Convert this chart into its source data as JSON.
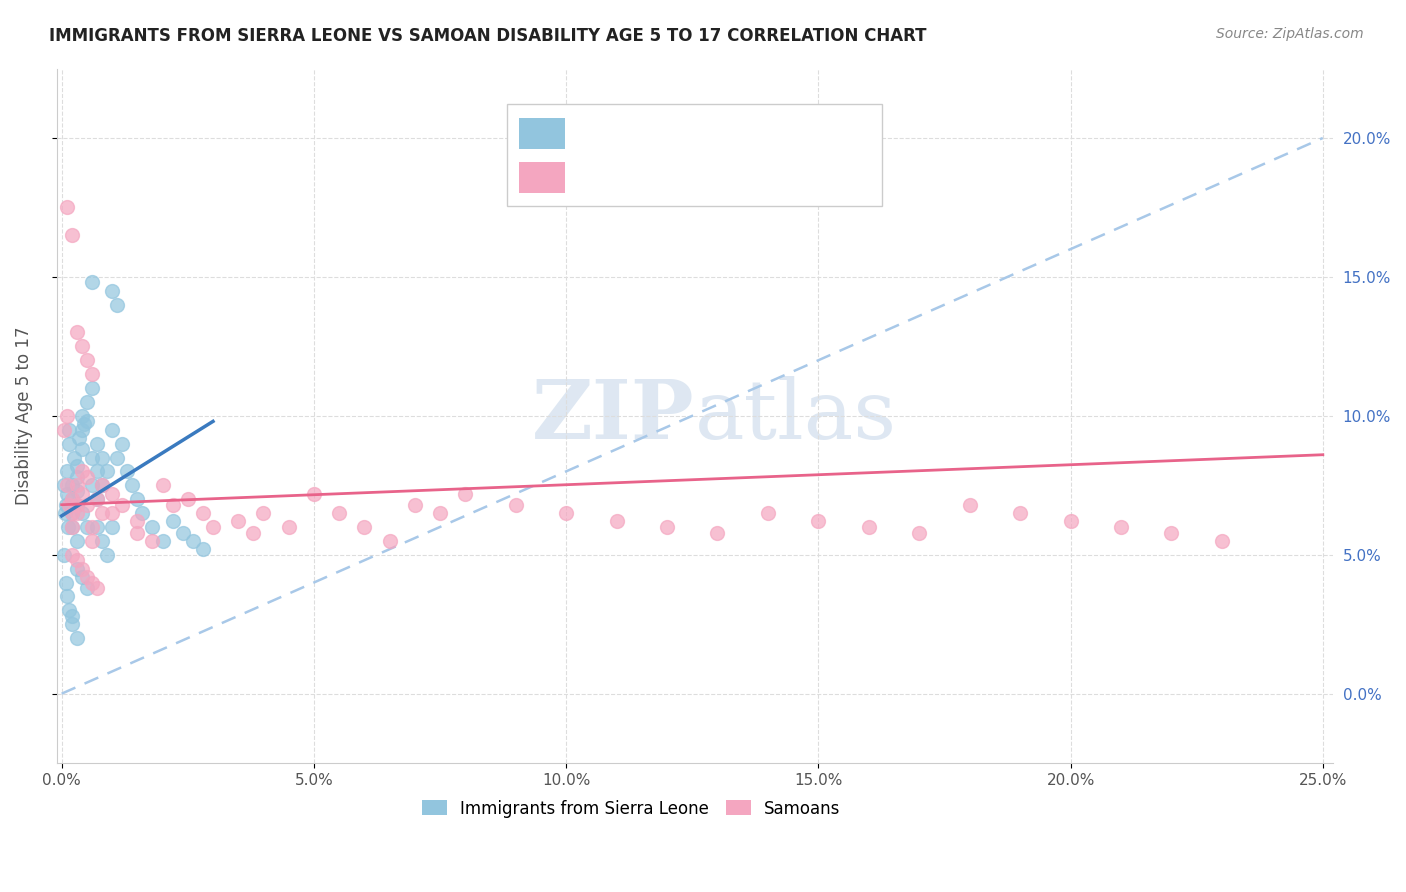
{
  "title": "IMMIGRANTS FROM SIERRA LEONE VS SAMOAN DISABILITY AGE 5 TO 17 CORRELATION CHART",
  "source": "Source: ZipAtlas.com",
  "ylabel": "Disability Age 5 to 17",
  "xlim": [
    -0.001,
    0.252
  ],
  "ylim": [
    -0.025,
    0.225
  ],
  "right_yticks": [
    0.0,
    0.05,
    0.1,
    0.15,
    0.2
  ],
  "right_yticklabels": [
    "0.0%",
    "5.0%",
    "10.0%",
    "15.0%",
    "20.0%"
  ],
  "xticks": [
    0.0,
    0.05,
    0.1,
    0.15,
    0.2,
    0.25
  ],
  "xticklabels": [
    "0.0%",
    "5.0%",
    "10.0%",
    "15.0%",
    "20.0%",
    "25.0%"
  ],
  "color_blue": "#92c5de",
  "color_pink": "#f4a6c0",
  "color_blue_line": "#3a7abf",
  "color_pink_line": "#e8638a",
  "color_dashed": "#a8c8e8",
  "watermark_color": "#c8d8ea",
  "legend1": "Immigrants from Sierra Leone",
  "legend2": "Samoans",
  "sierra_leone_x": [
    0.0005,
    0.0006,
    0.0008,
    0.001,
    0.001,
    0.0012,
    0.0015,
    0.0015,
    0.002,
    0.002,
    0.002,
    0.002,
    0.0025,
    0.003,
    0.003,
    0.003,
    0.003,
    0.003,
    0.0035,
    0.004,
    0.004,
    0.004,
    0.004,
    0.0045,
    0.005,
    0.005,
    0.005,
    0.006,
    0.006,
    0.006,
    0.007,
    0.007,
    0.007,
    0.008,
    0.008,
    0.009,
    0.01,
    0.01,
    0.011,
    0.012,
    0.013,
    0.014,
    0.015,
    0.016,
    0.018,
    0.02,
    0.022,
    0.024,
    0.026,
    0.028,
    0.0005,
    0.0008,
    0.001,
    0.0015,
    0.002,
    0.002,
    0.003,
    0.003,
    0.004,
    0.005,
    0.006,
    0.007,
    0.008,
    0.009,
    0.01,
    0.011
  ],
  "sierra_leone_y": [
    0.075,
    0.065,
    0.068,
    0.072,
    0.08,
    0.06,
    0.09,
    0.095,
    0.07,
    0.075,
    0.065,
    0.06,
    0.085,
    0.078,
    0.082,
    0.068,
    0.073,
    0.055,
    0.092,
    0.1,
    0.095,
    0.088,
    0.065,
    0.097,
    0.105,
    0.098,
    0.06,
    0.11,
    0.085,
    0.075,
    0.08,
    0.09,
    0.07,
    0.075,
    0.085,
    0.08,
    0.095,
    0.06,
    0.085,
    0.09,
    0.08,
    0.075,
    0.07,
    0.065,
    0.06,
    0.055,
    0.062,
    0.058,
    0.055,
    0.052,
    0.05,
    0.04,
    0.035,
    0.03,
    0.025,
    0.028,
    0.02,
    0.045,
    0.042,
    0.038,
    0.148,
    0.06,
    0.055,
    0.05,
    0.145,
    0.14
  ],
  "samoan_x": [
    0.0005,
    0.001,
    0.001,
    0.0015,
    0.002,
    0.002,
    0.002,
    0.003,
    0.003,
    0.003,
    0.004,
    0.004,
    0.005,
    0.005,
    0.006,
    0.006,
    0.007,
    0.008,
    0.008,
    0.01,
    0.01,
    0.012,
    0.015,
    0.015,
    0.018,
    0.02,
    0.022,
    0.025,
    0.028,
    0.03,
    0.035,
    0.038,
    0.04,
    0.045,
    0.05,
    0.055,
    0.06,
    0.065,
    0.07,
    0.075,
    0.08,
    0.09,
    0.1,
    0.11,
    0.12,
    0.13,
    0.14,
    0.15,
    0.16,
    0.17,
    0.18,
    0.19,
    0.2,
    0.21,
    0.22,
    0.23,
    0.001,
    0.002,
    0.003,
    0.004,
    0.005,
    0.006,
    0.002,
    0.003,
    0.004,
    0.005,
    0.006,
    0.007
  ],
  "samoan_y": [
    0.095,
    0.075,
    0.1,
    0.068,
    0.07,
    0.065,
    0.06,
    0.075,
    0.068,
    0.065,
    0.072,
    0.08,
    0.078,
    0.068,
    0.06,
    0.055,
    0.07,
    0.065,
    0.075,
    0.072,
    0.065,
    0.068,
    0.062,
    0.058,
    0.055,
    0.075,
    0.068,
    0.07,
    0.065,
    0.06,
    0.062,
    0.058,
    0.065,
    0.06,
    0.072,
    0.065,
    0.06,
    0.055,
    0.068,
    0.065,
    0.072,
    0.068,
    0.065,
    0.062,
    0.06,
    0.058,
    0.065,
    0.062,
    0.06,
    0.058,
    0.068,
    0.065,
    0.062,
    0.06,
    0.058,
    0.055,
    0.175,
    0.165,
    0.13,
    0.125,
    0.12,
    0.115,
    0.05,
    0.048,
    0.045,
    0.042,
    0.04,
    0.038
  ],
  "blue_trend_x0": 0.0,
  "blue_trend_y0": 0.064,
  "blue_trend_x1": 0.03,
  "blue_trend_y1": 0.098,
  "pink_trend_x0": 0.0,
  "pink_trend_y0": 0.068,
  "pink_trend_x1": 0.25,
  "pink_trend_y1": 0.086
}
